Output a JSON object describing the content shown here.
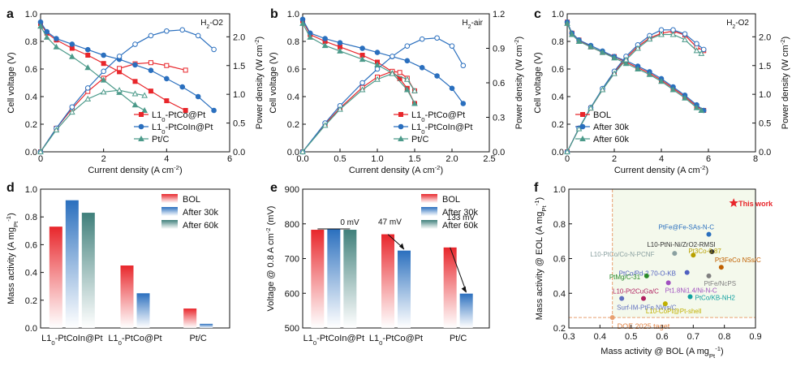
{
  "chart_data": [
    {
      "panel": "a",
      "type": "line",
      "condition": "H2-O2",
      "xlabel": "Current density (A cm-2)",
      "ylabel": "Cell voltage (V)",
      "y2label": "Power density (W cm-2)",
      "xlim": [
        0,
        6
      ],
      "ylim": [
        0,
        1.0
      ],
      "y2lim": [
        0,
        2.4
      ],
      "xticks": [
        "0",
        "2",
        "4",
        "6"
      ],
      "yticks": [
        "0.0",
        "0.2",
        "0.4",
        "0.6",
        "0.8",
        "1.0"
      ],
      "y2ticks": [
        "0.0",
        "0.5",
        "1.0",
        "1.5",
        "2.0"
      ],
      "legend": "bottom-right",
      "series": [
        {
          "name": "L10-PtCo@Pt",
          "color": "#e8262b",
          "marker": "square",
          "voltage": {
            "x": [
              0,
              0.2,
              0.5,
              1,
              1.5,
              2,
              2.5,
              3,
              3.5,
              4,
              4.6
            ],
            "y": [
              0.93,
              0.86,
              0.81,
              0.75,
              0.7,
              0.64,
              0.58,
              0.51,
              0.44,
              0.37,
              0.3
            ]
          },
          "power": {
            "x": [
              0,
              0.5,
              1,
              1.5,
              2,
              2.5,
              3,
              3.5,
              4,
              4.6
            ],
            "y": [
              0,
              0.41,
              0.75,
              1.05,
              1.28,
              1.45,
              1.53,
              1.55,
              1.5,
              1.42
            ]
          }
        },
        {
          "name": "L10-PtCoIn@Pt",
          "color": "#2a6fbe",
          "marker": "circle",
          "voltage": {
            "x": [
              0,
              0.2,
              0.5,
              1,
              1.5,
              2,
              2.5,
              3,
              3.5,
              4,
              4.5,
              5,
              5.5
            ],
            "y": [
              0.94,
              0.87,
              0.82,
              0.78,
              0.74,
              0.7,
              0.67,
              0.63,
              0.59,
              0.53,
              0.47,
              0.4,
              0.3
            ]
          },
          "power": {
            "x": [
              0,
              0.5,
              1,
              1.5,
              2,
              2.5,
              3,
              3.5,
              4,
              4.5,
              5,
              5.5
            ],
            "y": [
              0,
              0.41,
              0.78,
              1.11,
              1.4,
              1.66,
              1.87,
              2.02,
              2.1,
              2.12,
              2.02,
              1.78
            ]
          }
        },
        {
          "name": "Pt/C",
          "color": "#4c9a8a",
          "marker": "triangle",
          "voltage": {
            "x": [
              0,
              0.2,
              0.5,
              1,
              1.5,
              2,
              2.5,
              3,
              3.3
            ],
            "y": [
              0.91,
              0.83,
              0.76,
              0.69,
              0.61,
              0.52,
              0.43,
              0.34,
              0.3
            ]
          },
          "power": {
            "x": [
              0,
              0.5,
              1,
              1.5,
              2,
              2.5,
              3,
              3.3
            ],
            "y": [
              0,
              0.38,
              0.69,
              0.92,
              1.04,
              1.07,
              1.01,
              0.98
            ]
          }
        }
      ]
    },
    {
      "panel": "b",
      "type": "line",
      "condition": "H2-air",
      "xlabel": "Current density (A cm-2)",
      "ylabel": "Cell voltage (V)",
      "y2label": "Power density (W cm-2)",
      "xlim": [
        0,
        2.5
      ],
      "ylim": [
        0,
        1.0
      ],
      "y2lim": [
        0,
        1.2
      ],
      "xticks": [
        "0.0",
        "0.5",
        "1.0",
        "1.5",
        "2.0",
        "2.5"
      ],
      "yticks": [
        "0.0",
        "0.2",
        "0.4",
        "0.6",
        "0.8",
        "1.0"
      ],
      "y2ticks": [
        "0.0",
        "0.3",
        "0.6",
        "0.9",
        "1.2"
      ],
      "legend": "bottom-right",
      "series": [
        {
          "name": "L10-PtCo@Pt",
          "color": "#e8262b",
          "marker": "square",
          "voltage": {
            "x": [
              0,
              0.1,
              0.3,
              0.5,
              0.8,
              1.0,
              1.2,
              1.3,
              1.4,
              1.5
            ],
            "y": [
              0.95,
              0.85,
              0.8,
              0.76,
              0.7,
              0.65,
              0.58,
              0.53,
              0.46,
              0.35
            ]
          },
          "power": {
            "x": [
              0,
              0.3,
              0.5,
              0.8,
              1.0,
              1.2,
              1.3,
              1.4,
              1.5
            ],
            "y": [
              0,
              0.24,
              0.38,
              0.56,
              0.65,
              0.7,
              0.69,
              0.64,
              0.53
            ]
          }
        },
        {
          "name": "L10-PtCoIn@Pt",
          "color": "#2a6fbe",
          "marker": "circle",
          "voltage": {
            "x": [
              0,
              0.1,
              0.3,
              0.5,
              0.8,
              1.0,
              1.2,
              1.4,
              1.6,
              1.8,
              2.0,
              2.15
            ],
            "y": [
              0.96,
              0.86,
              0.82,
              0.79,
              0.75,
              0.72,
              0.69,
              0.66,
              0.61,
              0.55,
              0.46,
              0.35
            ]
          },
          "power": {
            "x": [
              0,
              0.3,
              0.5,
              0.8,
              1.0,
              1.2,
              1.4,
              1.6,
              1.8,
              2.0,
              2.15
            ],
            "y": [
              0,
              0.25,
              0.4,
              0.6,
              0.72,
              0.83,
              0.92,
              0.98,
              0.99,
              0.92,
              0.75
            ]
          }
        },
        {
          "name": "Pt/C",
          "color": "#4c9a8a",
          "marker": "triangle",
          "voltage": {
            "x": [
              0,
              0.1,
              0.3,
              0.5,
              0.8,
              1.0,
              1.2,
              1.4,
              1.5
            ],
            "y": [
              0.93,
              0.83,
              0.77,
              0.73,
              0.67,
              0.63,
              0.57,
              0.45,
              0.35
            ]
          },
          "power": {
            "x": [
              0,
              0.3,
              0.5,
              0.8,
              1.0,
              1.2,
              1.4,
              1.5
            ],
            "y": [
              0,
              0.23,
              0.37,
              0.54,
              0.63,
              0.68,
              0.63,
              0.53
            ]
          }
        }
      ]
    },
    {
      "panel": "c",
      "type": "line",
      "condition": "H2-O2",
      "xlabel": "Current density (A cm-2)",
      "ylabel": "Cell voltage (V)",
      "y2label": "Power density (W cm-2)",
      "xlim": [
        0,
        8
      ],
      "ylim": [
        0,
        1.0
      ],
      "y2lim": [
        0,
        2.4
      ],
      "xticks": [
        "0",
        "2",
        "4",
        "6",
        "8"
      ],
      "yticks": [
        "0.0",
        "0.2",
        "0.4",
        "0.6",
        "0.8",
        "1.0"
      ],
      "y2ticks": [
        "0.0",
        "0.5",
        "1.0",
        "1.5",
        "2.0"
      ],
      "legend": "bottom-left",
      "series": [
        {
          "name": "BOL",
          "color": "#e8262b",
          "marker": "square",
          "voltage": {
            "x": [
              0,
              0.2,
              0.5,
              1,
              1.5,
              2,
              2.5,
              3,
              3.5,
              4,
              4.5,
              5,
              5.5,
              5.8
            ],
            "y": [
              0.94,
              0.86,
              0.81,
              0.76,
              0.72,
              0.69,
              0.65,
              0.61,
              0.57,
              0.52,
              0.46,
              0.4,
              0.33,
              0.3
            ]
          },
          "power": {
            "x": [
              0,
              0.5,
              1,
              1.5,
              2,
              2.5,
              3,
              3.5,
              4,
              4.5,
              5,
              5.5,
              5.8
            ],
            "y": [
              0,
              0.41,
              0.76,
              1.08,
              1.38,
              1.63,
              1.83,
              1.98,
              2.06,
              2.1,
              2.03,
              1.82,
              1.76
            ]
          }
        },
        {
          "name": "After 30k",
          "color": "#2a6fbe",
          "marker": "circle",
          "voltage": {
            "x": [
              0,
              0.2,
              0.5,
              1,
              1.5,
              2,
              2.5,
              3,
              3.5,
              4,
              4.5,
              5,
              5.5,
              5.8
            ],
            "y": [
              0.94,
              0.86,
              0.81,
              0.77,
              0.73,
              0.69,
              0.66,
              0.62,
              0.58,
              0.53,
              0.47,
              0.41,
              0.34,
              0.3
            ]
          },
          "power": {
            "x": [
              0,
              0.5,
              1,
              1.5,
              2,
              2.5,
              3,
              3.5,
              4,
              4.5,
              5,
              5.5,
              5.8
            ],
            "y": [
              0,
              0.41,
              0.77,
              1.1,
              1.4,
              1.66,
              1.86,
              2.02,
              2.12,
              2.12,
              2.05,
              1.88,
              1.78
            ]
          }
        },
        {
          "name": "After 60k",
          "color": "#4c9a8a",
          "marker": "triangle",
          "voltage": {
            "x": [
              0,
              0.2,
              0.5,
              1,
              1.5,
              2,
              2.5,
              3,
              3.5,
              4,
              4.5,
              5,
              5.5,
              5.7
            ],
            "y": [
              0.93,
              0.85,
              0.8,
              0.76,
              0.72,
              0.68,
              0.64,
              0.6,
              0.56,
              0.51,
              0.45,
              0.39,
              0.32,
              0.3
            ]
          },
          "power": {
            "x": [
              0,
              0.5,
              1,
              1.5,
              2,
              2.5,
              3,
              3.5,
              4,
              4.5,
              5,
              5.5,
              5.7
            ],
            "y": [
              0,
              0.4,
              0.76,
              1.08,
              1.36,
              1.6,
              1.8,
              1.96,
              2.04,
              2.04,
              1.95,
              1.76,
              1.71
            ]
          }
        }
      ]
    },
    {
      "panel": "d",
      "type": "bar",
      "ylabel": "Mass activity (A mgPt-1)",
      "ylim": [
        0,
        1.0
      ],
      "yticks": [
        "0.0",
        "0.2",
        "0.4",
        "0.6",
        "0.8",
        "1.0"
      ],
      "categories": [
        "L10-PtCoIn@Pt",
        "L10-PtCo@Pt",
        "Pt/C"
      ],
      "legend": "top-right",
      "series": [
        {
          "name": "BOL",
          "color": "#e8262b",
          "values": [
            0.73,
            0.45,
            0.14
          ]
        },
        {
          "name": "After 30k",
          "color": "#2a6fbe",
          "values": [
            0.92,
            0.25,
            0.03
          ]
        },
        {
          "name": "After 60k",
          "color": "#3f7f7a",
          "values": [
            0.83,
            null,
            null
          ]
        }
      ]
    },
    {
      "panel": "e",
      "type": "bar",
      "ylabel": "Voltage @ 0.8 A cm-2 (mV)",
      "ylim": [
        500,
        900
      ],
      "yticks": [
        "500",
        "600",
        "700",
        "800",
        "900"
      ],
      "categories": [
        "L10-PtCoIn@Pt",
        "L10-PtCo@Pt",
        "Pt/C"
      ],
      "legend": "top-right",
      "series": [
        {
          "name": "BOL",
          "color": "#e8262b",
          "values": [
            783,
            770,
            732
          ]
        },
        {
          "name": "After 30k",
          "color": "#2a6fbe",
          "values": [
            785,
            723,
            599
          ]
        },
        {
          "name": "After 60k",
          "color": "#3f7f7a",
          "values": [
            783,
            null,
            null
          ]
        }
      ],
      "annotations": [
        "0 mV",
        "47 mV",
        "133 mV"
      ]
    },
    {
      "panel": "f",
      "type": "scatter",
      "xlabel": "Mass activity @ BOL (A mgPt-1)",
      "ylabel": "Mass activity @ EOL (A mgPt-1)",
      "xlim": [
        0.3,
        0.9
      ],
      "ylim": [
        0.2,
        1.0
      ],
      "xticks": [
        "0.3",
        "0.4",
        "0.5",
        "0.6",
        "0.7",
        "0.8",
        "0.9"
      ],
      "yticks": [
        "0.2",
        "0.4",
        "0.6",
        "0.8",
        "1.0"
      ],
      "reference": {
        "label": "DOE 2025 taget",
        "x": 0.44,
        "y": 0.26
      },
      "points": [
        {
          "label": "This work",
          "x": 0.83,
          "y": 0.92,
          "color": "#e8262b"
        },
        {
          "label": "PtFe@Fe-SAs-N-C",
          "x": 0.75,
          "y": 0.74,
          "color": "#2a6fbe"
        },
        {
          "label": "L10-PtNi-Ni/ZrO2-RMSI",
          "x": 0.76,
          "y": 0.64,
          "color": "#333333"
        },
        {
          "label": "L10-PtCo/Co-N-PCNF",
          "x": 0.64,
          "y": 0.63,
          "color": "#8aa0a0"
        },
        {
          "label": "Pt3Co-0.87",
          "x": 0.7,
          "y": 0.62,
          "color": "#b8a000"
        },
        {
          "label": "Pt3FeCo NSs/C",
          "x": 0.79,
          "y": 0.55,
          "color": "#c06000"
        },
        {
          "label": "PtCo/Pd-2.70-O-KB",
          "x": 0.68,
          "y": 0.52,
          "color": "#5060c0"
        },
        {
          "label": "PtFe/NcPS",
          "x": 0.75,
          "y": 0.5,
          "color": "#808080"
        },
        {
          "label": "PtMg/C-31",
          "x": 0.55,
          "y": 0.5,
          "color": "#2a8a2a"
        },
        {
          "label": "Pt1.8Ni1.4/Ni-N-C",
          "x": 0.62,
          "y": 0.46,
          "color": "#a050c0"
        },
        {
          "label": "L10-Pt2CuGa/C",
          "x": 0.54,
          "y": 0.37,
          "color": "#b02060"
        },
        {
          "label": "PtCo/KB-NH2",
          "x": 0.69,
          "y": 0.38,
          "color": "#10a0a0"
        },
        {
          "label": "Surf-IM-PtFe NWs/C",
          "x": 0.47,
          "y": 0.37,
          "color": "#6070c0"
        },
        {
          "label": "L10-CoPt@Pt-shell",
          "x": 0.61,
          "y": 0.34,
          "color": "#c0b000"
        }
      ]
    }
  ],
  "panel_labels": [
    "a",
    "b",
    "c",
    "d",
    "e",
    "f"
  ],
  "colors": {
    "red": "#e8262b",
    "blue": "#2a6fbe",
    "teal": "#4c9a8a",
    "doe": "#e8a070"
  }
}
